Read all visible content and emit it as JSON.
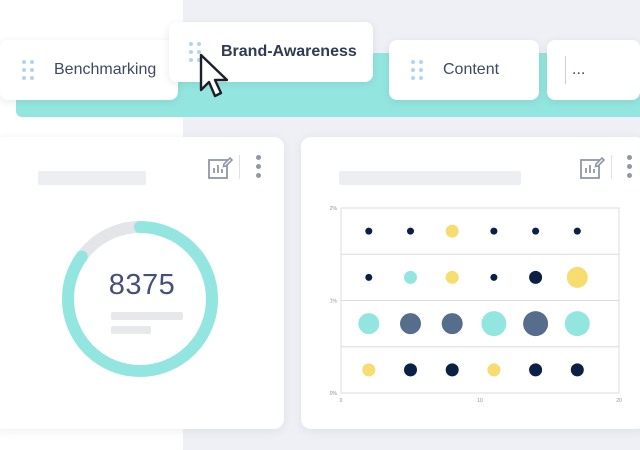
{
  "tabs": [
    {
      "label": "Benchmarking"
    },
    {
      "label": "Brand-Awareness"
    },
    {
      "label": "Content"
    },
    {
      "label": "..."
    }
  ],
  "gauge_card": {
    "value": "8375",
    "progress": 0.85
  },
  "colors": {
    "teal": "#93e6df",
    "navy": "#0c1f44",
    "slate": "#566d8b",
    "yellow": "#f7dd6f",
    "accent_dot": "#b5d3f0"
  },
  "chart_data": {
    "type": "scatter",
    "ytick_labels": [
      "0%",
      "1%",
      "2%"
    ],
    "xtick_labels": [
      "0",
      "10",
      "20"
    ],
    "xlim": [
      0,
      20
    ],
    "ylim": [
      0,
      2
    ],
    "grid": true,
    "rows": [
      {
        "y": 1.75,
        "points": [
          {
            "x": 2,
            "size": 1,
            "color": "navy"
          },
          {
            "x": 5,
            "size": 1,
            "color": "navy"
          },
          {
            "x": 8,
            "size": 2,
            "color": "yellow"
          },
          {
            "x": 11,
            "size": 1,
            "color": "navy"
          },
          {
            "x": 14,
            "size": 1,
            "color": "navy"
          },
          {
            "x": 17,
            "size": 1,
            "color": "navy"
          }
        ]
      },
      {
        "y": 1.25,
        "points": [
          {
            "x": 2,
            "size": 1,
            "color": "navy"
          },
          {
            "x": 5,
            "size": 2,
            "color": "teal"
          },
          {
            "x": 8,
            "size": 2,
            "color": "yellow"
          },
          {
            "x": 11,
            "size": 1,
            "color": "navy"
          },
          {
            "x": 14,
            "size": 2,
            "color": "navy"
          },
          {
            "x": 17,
            "size": 3,
            "color": "yellow"
          }
        ]
      },
      {
        "y": 0.75,
        "points": [
          {
            "x": 2,
            "size": 3,
            "color": "teal"
          },
          {
            "x": 5,
            "size": 3,
            "color": "slate"
          },
          {
            "x": 8,
            "size": 3,
            "color": "slate"
          },
          {
            "x": 11,
            "size": 4,
            "color": "teal"
          },
          {
            "x": 14,
            "size": 4,
            "color": "slate"
          },
          {
            "x": 17,
            "size": 4,
            "color": "teal"
          }
        ]
      },
      {
        "y": 0.25,
        "points": [
          {
            "x": 2,
            "size": 2,
            "color": "yellow"
          },
          {
            "x": 5,
            "size": 2,
            "color": "navy"
          },
          {
            "x": 8,
            "size": 2,
            "color": "navy"
          },
          {
            "x": 11,
            "size": 2,
            "color": "yellow"
          },
          {
            "x": 14,
            "size": 2,
            "color": "navy"
          },
          {
            "x": 17,
            "size": 2,
            "color": "navy"
          }
        ]
      }
    ]
  }
}
